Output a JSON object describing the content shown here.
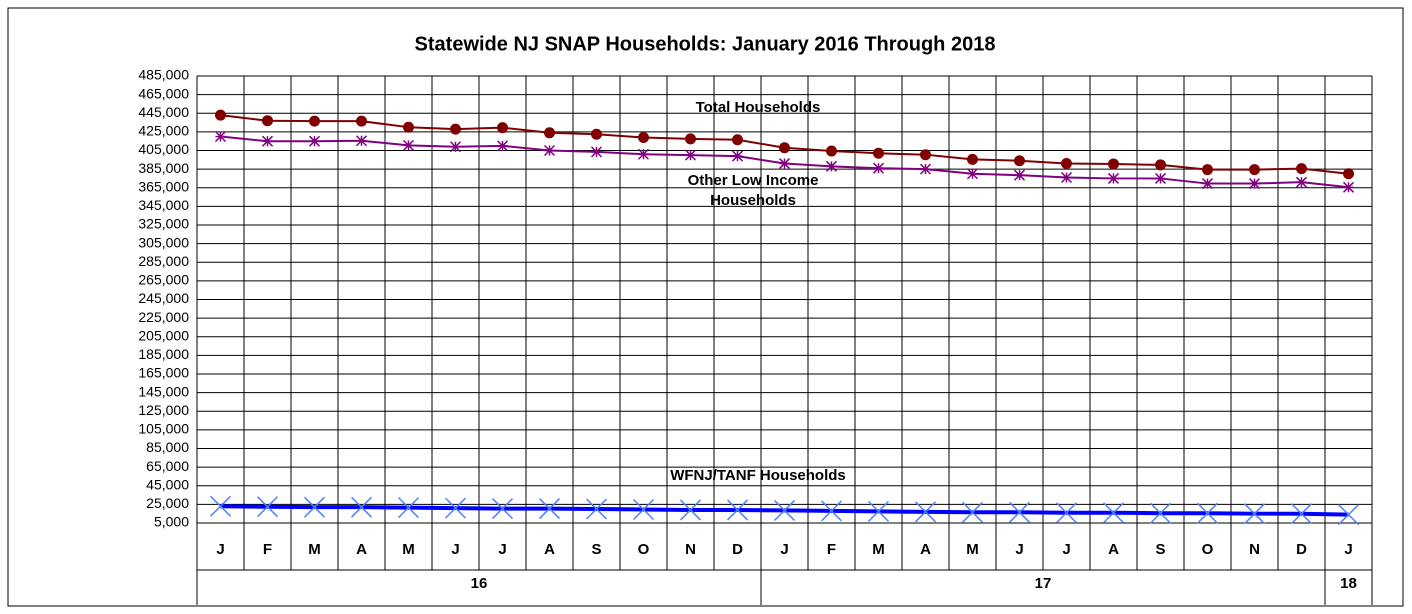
{
  "chart_data": {
    "type": "line",
    "title": "Statewide NJ SNAP Households: January 2016 Through 2018",
    "categories": [
      "J",
      "F",
      "M",
      "A",
      "M",
      "J",
      "J",
      "A",
      "S",
      "O",
      "N",
      "D",
      "J",
      "F",
      "M",
      "A",
      "M",
      "J",
      "J",
      "A",
      "S",
      "O",
      "N",
      "D",
      "J"
    ],
    "category_groups": [
      {
        "label": "16",
        "count": 12
      },
      {
        "label": "17",
        "count": 12
      },
      {
        "label": "18",
        "count": 1
      }
    ],
    "series": [
      {
        "name": "Total Households",
        "color": "#800000",
        "marker": "circle",
        "values": [
          443000,
          437000,
          436500,
          436500,
          430000,
          428000,
          429500,
          424000,
          422500,
          419000,
          417500,
          416500,
          408000,
          404500,
          402000,
          400500,
          395500,
          394000,
          391000,
          390500,
          389500,
          384500,
          384500,
          385500,
          380000
        ]
      },
      {
        "name": "Other Low Income Households",
        "color": "#800080",
        "marker": "asterisk",
        "values": [
          420000,
          415000,
          415000,
          415500,
          410500,
          409000,
          410000,
          405000,
          403500,
          401000,
          400000,
          399000,
          391000,
          388000,
          386000,
          385000,
          380000,
          378500,
          376000,
          375000,
          375000,
          369500,
          369500,
          371000,
          365500
        ]
      },
      {
        "name": "WFNJ/TANF Households",
        "color": "#0000ff",
        "marker": "x",
        "values": [
          23000,
          22500,
          22000,
          22000,
          21500,
          21000,
          20500,
          20500,
          20000,
          19500,
          19000,
          19000,
          18500,
          18000,
          17500,
          17000,
          16500,
          16500,
          16000,
          16000,
          15500,
          15500,
          15000,
          15000,
          14000
        ]
      }
    ],
    "ylim": [
      5000,
      485000
    ],
    "yticks": [
      {
        "value": 5000,
        "label": "5,000"
      },
      {
        "value": 25000,
        "label": "25,000"
      },
      {
        "value": 45000,
        "label": "45,000"
      },
      {
        "value": 65000,
        "label": "65,000"
      },
      {
        "value": 85000,
        "label": "85,000"
      },
      {
        "value": 105000,
        "label": "105,000"
      },
      {
        "value": 125000,
        "label": "125,000"
      },
      {
        "value": 145000,
        "label": "145,000"
      },
      {
        "value": 165000,
        "label": "165,000"
      },
      {
        "value": 185000,
        "label": "185,000"
      },
      {
        "value": 205000,
        "label": "205,000"
      },
      {
        "value": 225000,
        "label": "225,000"
      },
      {
        "value": 245000,
        "label": "245,000"
      },
      {
        "value": 265000,
        "label": "265,000"
      },
      {
        "value": 285000,
        "label": "285,000"
      },
      {
        "value": 305000,
        "label": "305,000"
      },
      {
        "value": 325000,
        "label": "325,000"
      },
      {
        "value": 345000,
        "label": "345,000"
      },
      {
        "value": 365000,
        "label": "365,000"
      },
      {
        "value": 385000,
        "label": "385,000"
      },
      {
        "value": 405000,
        "label": "405,000"
      },
      {
        "value": 425000,
        "label": "425,000"
      },
      {
        "value": 445000,
        "label": "445,000"
      },
      {
        "value": 465000,
        "label": "465,000"
      },
      {
        "value": 485000,
        "label": "485,000"
      }
    ],
    "grid": true
  }
}
